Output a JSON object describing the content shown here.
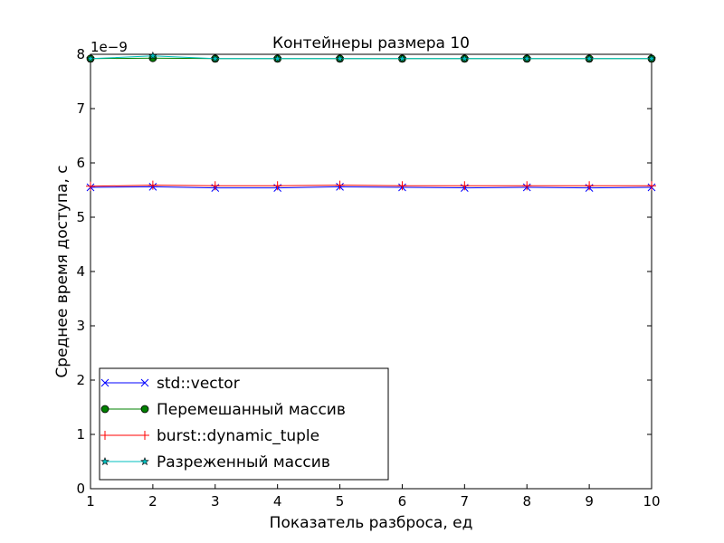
{
  "chart_data": {
    "type": "line",
    "title": "Контейнеры размера 10",
    "xlabel": "Показатель разброса, ед",
    "ylabel": "Среднее время доступа, с",
    "y_multiplier_label": "1e−9",
    "xlim": [
      1,
      10
    ],
    "ylim": [
      0,
      8
    ],
    "xticks": [
      "1",
      "2",
      "3",
      "4",
      "5",
      "6",
      "7",
      "8",
      "9",
      "10"
    ],
    "yticks": [
      "0",
      "1",
      "2",
      "3",
      "4",
      "5",
      "6",
      "7",
      "8"
    ],
    "grid": false,
    "legend_position": "lower-left",
    "x": [
      1,
      2,
      3,
      4,
      5,
      6,
      7,
      8,
      9,
      10
    ],
    "series": [
      {
        "name": "std::vector",
        "color": "#0000ff",
        "marker": "x",
        "values": [
          5.55,
          5.56,
          5.54,
          5.54,
          5.56,
          5.55,
          5.54,
          5.55,
          5.54,
          5.55
        ]
      },
      {
        "name": "Перемешанный массив",
        "color": "#008000",
        "marker": "circle",
        "values": [
          7.92,
          7.93,
          7.92,
          7.92,
          7.92,
          7.92,
          7.92,
          7.92,
          7.92,
          7.92
        ]
      },
      {
        "name": "burst::dynamic_tuple",
        "color": "#ff0000",
        "marker": "plus",
        "values": [
          5.57,
          5.59,
          5.58,
          5.58,
          5.59,
          5.58,
          5.58,
          5.58,
          5.58,
          5.58
        ]
      },
      {
        "name": "Разреженный массив",
        "color": "#00bfbf",
        "marker": "star",
        "values": [
          7.92,
          7.97,
          7.92,
          7.92,
          7.92,
          7.92,
          7.92,
          7.92,
          7.92,
          7.92
        ]
      }
    ]
  }
}
